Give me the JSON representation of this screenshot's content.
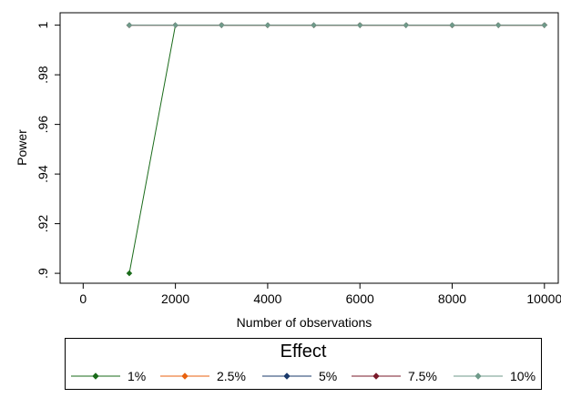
{
  "chart_data": {
    "type": "line",
    "xlabel": "Number of observations",
    "ylabel": "Power",
    "xlim": [
      -500,
      10300
    ],
    "ylim": [
      0.896,
      1.005
    ],
    "xticks": [
      0,
      2000,
      4000,
      6000,
      8000,
      10000
    ],
    "xtick_labels": [
      "0",
      "2000",
      "4000",
      "6000",
      "8000",
      "10000"
    ],
    "yticks": [
      0.9,
      0.92,
      0.94,
      0.96,
      0.98,
      1
    ],
    "ytick_labels": [
      ".9",
      ".92",
      ".94",
      ".96",
      ".98",
      "1"
    ],
    "grid": false,
    "legend": {
      "title": "Effect",
      "position": "bottom"
    },
    "series": [
      {
        "name": "1%",
        "color": "#1a6b1a",
        "x": [
          1000,
          2000,
          3000,
          4000,
          5000,
          6000,
          7000,
          8000,
          9000,
          10000
        ],
        "y": [
          0.9,
          1,
          1,
          1,
          1,
          1,
          1,
          1,
          1,
          1
        ]
      },
      {
        "name": "2.5%",
        "color": "#e8620f",
        "x": [
          1000,
          2000,
          3000,
          4000,
          5000,
          6000,
          7000,
          8000,
          9000,
          10000
        ],
        "y": [
          1,
          1,
          1,
          1,
          1,
          1,
          1,
          1,
          1,
          1
        ]
      },
      {
        "name": "5%",
        "color": "#1a3a6b",
        "x": [
          1000,
          2000,
          3000,
          4000,
          5000,
          6000,
          7000,
          8000,
          9000,
          10000
        ],
        "y": [
          1,
          1,
          1,
          1,
          1,
          1,
          1,
          1,
          1,
          1
        ]
      },
      {
        "name": "7.5%",
        "color": "#7a1a2a",
        "x": [
          1000,
          2000,
          3000,
          4000,
          5000,
          6000,
          7000,
          8000,
          9000,
          10000
        ],
        "y": [
          1,
          1,
          1,
          1,
          1,
          1,
          1,
          1,
          1,
          1
        ]
      },
      {
        "name": "10%",
        "color": "#6f9a8a",
        "x": [
          1000,
          2000,
          3000,
          4000,
          5000,
          6000,
          7000,
          8000,
          9000,
          10000
        ],
        "y": [
          1,
          1,
          1,
          1,
          1,
          1,
          1,
          1,
          1,
          1
        ]
      }
    ]
  }
}
